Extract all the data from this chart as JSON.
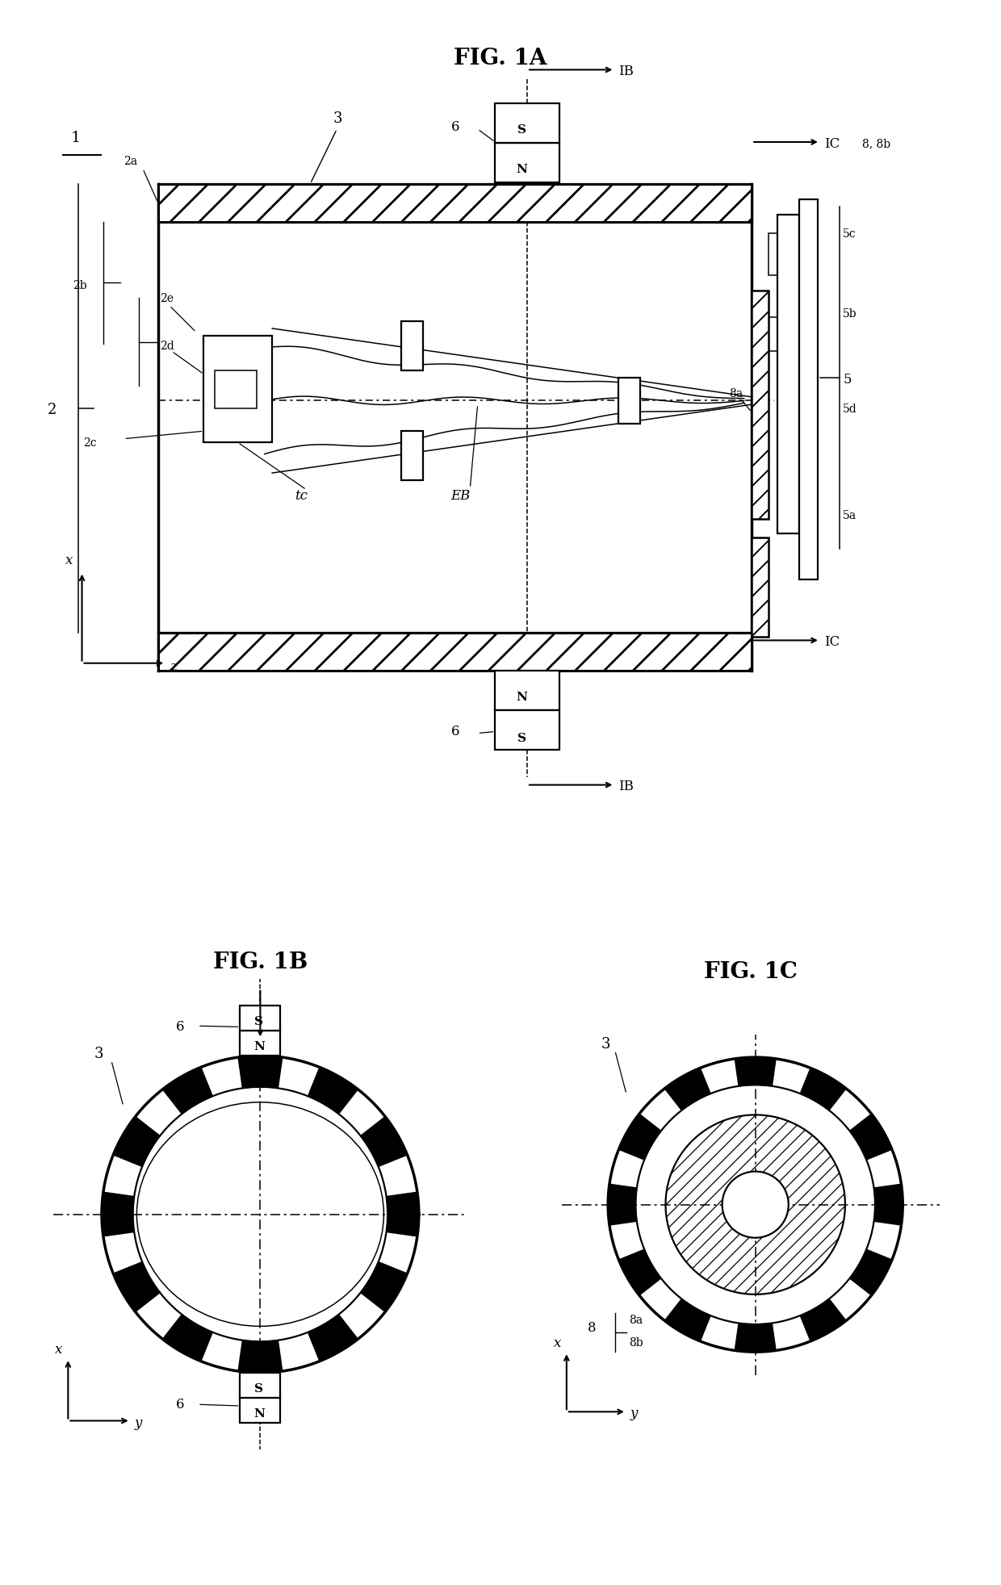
{
  "fig_title_A": "FIG. 1A",
  "fig_title_B": "FIG. 1B",
  "fig_title_C": "FIG. 1C",
  "bg_color": "#ffffff",
  "line_color": "#000000",
  "fontsize_title": 20,
  "fontsize_label": 13,
  "fontsize_small": 11
}
